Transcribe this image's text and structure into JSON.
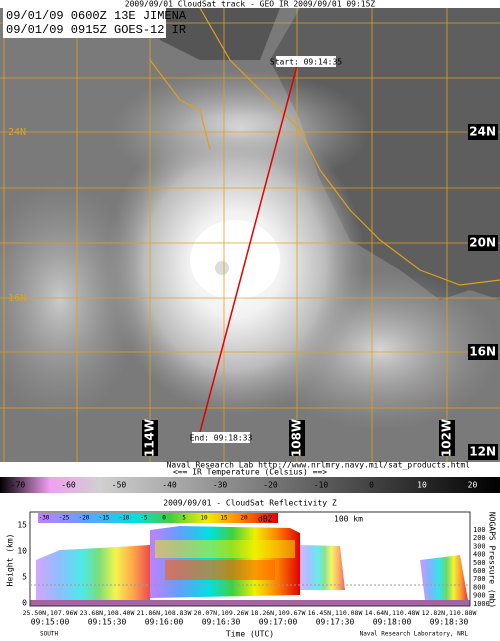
{
  "header": {
    "title": "2009/09/01 CloudSat track - GEO IR  2009/09/01 09:15Z"
  },
  "info_box": [
    "09/01/09 0600Z  13E JIMENA",
    "09/01/09 0915Z  GOES-12 IR"
  ],
  "track": {
    "start": "Start: 09:14:35",
    "end": "End: 09:18:33"
  },
  "lat_labels": [
    "24N",
    "20N",
    "16N",
    "12N"
  ],
  "faint_lat_labels": [
    "24N",
    "16N"
  ],
  "lon_labels": [
    "114W",
    "108W",
    "102W"
  ],
  "credit": "Naval Research Lab http://www.nrlmry.navy.mil/sat_products.html",
  "ir_caption": "<==  IR Temperature (Celsius)  ==>",
  "ir_ticks": [
    -70,
    -60,
    -50,
    -40,
    -30,
    -20,
    -10,
    0,
    10,
    20
  ],
  "profile": {
    "title": "2009/09/01 - CloudSat Reflectivity Z",
    "units": "dBZ",
    "scale": "100 km",
    "dbz_ticks": [
      -30,
      -25,
      -20,
      -15,
      -10,
      -5,
      0,
      5,
      10,
      15,
      20
    ],
    "y_label": "Height (km)",
    "y_ticks": [
      0,
      5,
      10,
      15
    ],
    "y2_label": "NOGAPS Pressure (mb)",
    "y2_ticks": [
      100,
      200,
      300,
      400,
      500,
      600,
      700,
      800,
      900,
      1000
    ],
    "positions": [
      "25.50N,107.96W",
      "23.68N,108.40W",
      "21.86N,108.83W",
      "20.07N,109.26W",
      "18.26N,109.67W",
      "16.45N,110.08W",
      "14.64N,110.48W",
      "12.82N,110.88W"
    ],
    "times": [
      "09:15:00",
      "09:15:30",
      "09:16:00",
      "09:16:30",
      "09:17:00",
      "09:17:30",
      "09:18:00",
      "09:18:30"
    ],
    "x_label": "Time (UTC)",
    "direction": "SOUTH",
    "credit": "Naval Research Laboratory, NRL"
  }
}
